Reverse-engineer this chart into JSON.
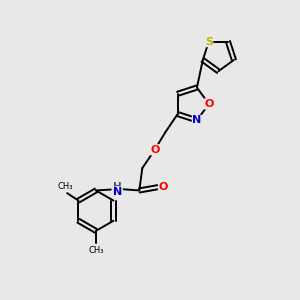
{
  "background_color": "#e8e8e8",
  "bond_color": "#000000",
  "atom_colors": {
    "S": "#b8b800",
    "O": "#ff0000",
    "N": "#0000cc",
    "H": "#555555",
    "C": "#000000"
  },
  "figsize": [
    3.0,
    3.0
  ],
  "dpi": 100
}
